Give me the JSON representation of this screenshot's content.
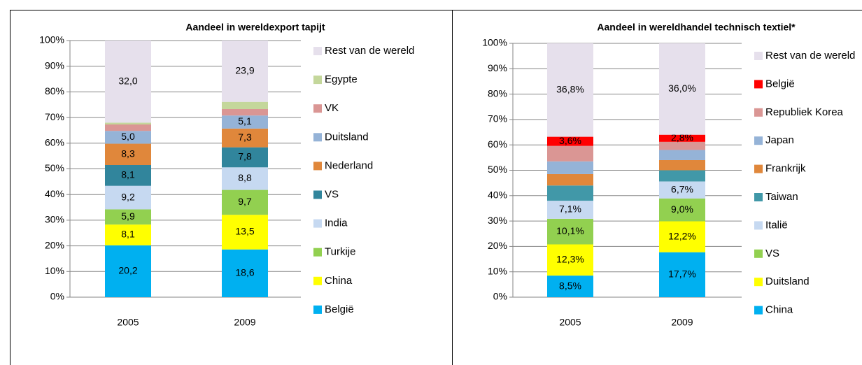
{
  "chart_data": [
    {
      "type": "stacked_bar",
      "title": "Aandeel in wereldexport tapijt",
      "categories": [
        "2005",
        "2009"
      ],
      "ylim": [
        0,
        100
      ],
      "yticks": [
        {
          "value": 0,
          "label": "0%"
        },
        {
          "value": 10,
          "label": "10%"
        },
        {
          "value": 20,
          "label": "20%"
        },
        {
          "value": 30,
          "label": "30%"
        },
        {
          "value": 40,
          "label": "40%"
        },
        {
          "value": 50,
          "label": "50%"
        },
        {
          "value": 60,
          "label": "60%"
        },
        {
          "value": 70,
          "label": "70%"
        },
        {
          "value": 80,
          "label": "80%"
        },
        {
          "value": 90,
          "label": "90%"
        },
        {
          "value": 100,
          "label": "100%"
        }
      ],
      "grid": true,
      "series": [
        {
          "name": "België",
          "color": "#00b0f0",
          "values": [
            20.2,
            18.6
          ],
          "value_labels": [
            "20,2",
            "18,6"
          ]
        },
        {
          "name": "China",
          "color": "#ffff00",
          "values": [
            8.1,
            13.5
          ],
          "value_labels": [
            "8,1",
            "13,5"
          ]
        },
        {
          "name": "Turkije",
          "color": "#92d050",
          "values": [
            5.9,
            9.7
          ],
          "value_labels": [
            "5,9",
            "9,7"
          ]
        },
        {
          "name": "India",
          "color": "#c6d9f1",
          "values": [
            9.2,
            8.8
          ],
          "value_labels": [
            "9,2",
            "8,8"
          ]
        },
        {
          "name": "VS",
          "color": "#31859c",
          "values": [
            8.1,
            7.8
          ],
          "value_labels": [
            "8,1",
            "7,8"
          ]
        },
        {
          "name": "Nederland",
          "color": "#e0873b",
          "values": [
            8.3,
            7.3
          ],
          "value_labels": [
            "8,3",
            "7,3"
          ]
        },
        {
          "name": "Duitsland",
          "color": "#95b3d7",
          "values": [
            5.0,
            5.1
          ],
          "value_labels": [
            "5,0",
            "5,1"
          ]
        },
        {
          "name": "VK",
          "color": "#da9694",
          "values": [
            2.5,
            2.5
          ]
        },
        {
          "name": "Egypte",
          "color": "#c4d79b",
          "values": [
            0.7,
            2.8
          ]
        },
        {
          "name": "Rest van de wereld",
          "color": "#e6e0ec",
          "values": [
            32.0,
            23.9
          ],
          "value_labels": [
            "32,0",
            "23,9"
          ]
        }
      ]
    },
    {
      "type": "stacked_bar",
      "title": "Aandeel in wereldhandel technisch textiel*",
      "categories": [
        "2005",
        "2009"
      ],
      "ylim": [
        0,
        100
      ],
      "yticks": [
        {
          "value": 0,
          "label": "0%"
        },
        {
          "value": 10,
          "label": "10%"
        },
        {
          "value": 20,
          "label": "20%"
        },
        {
          "value": 30,
          "label": "30%"
        },
        {
          "value": 40,
          "label": "40%"
        },
        {
          "value": 50,
          "label": "50%"
        },
        {
          "value": 60,
          "label": "60%"
        },
        {
          "value": 70,
          "label": "70%"
        },
        {
          "value": 80,
          "label": "80%"
        },
        {
          "value": 90,
          "label": "90%"
        },
        {
          "value": 100,
          "label": "100%"
        }
      ],
      "grid": true,
      "series": [
        {
          "name": "China",
          "color": "#00b0f0",
          "values": [
            8.5,
            17.7
          ],
          "value_labels": [
            "8,5%",
            "17,7%"
          ]
        },
        {
          "name": "Duitsland",
          "color": "#ffff00",
          "values": [
            12.3,
            12.2
          ],
          "value_labels": [
            "12,3%",
            "12,2%"
          ]
        },
        {
          "name": "VS",
          "color": "#92d050",
          "values": [
            10.1,
            9.0
          ],
          "value_labels": [
            "10,1%",
            "9,0%"
          ]
        },
        {
          "name": "Italië",
          "color": "#c6d9f1",
          "values": [
            7.1,
            6.7
          ],
          "value_labels": [
            "7,1%",
            "6,7%"
          ]
        },
        {
          "name": "Taiwan",
          "color": "#4198a8",
          "values": [
            6.0,
            4.4
          ]
        },
        {
          "name": "Frankrijk",
          "color": "#e0873b",
          "values": [
            4.5,
            4.0
          ]
        },
        {
          "name": "Japan",
          "color": "#95b3d7",
          "values": [
            5.0,
            4.0
          ]
        },
        {
          "name": "Republiek Korea",
          "color": "#da9694",
          "values": [
            6.1,
            3.2
          ]
        },
        {
          "name": "België",
          "color": "#ff0000",
          "values": [
            3.6,
            2.8
          ],
          "value_labels": [
            "3,6%",
            "2,8%"
          ]
        },
        {
          "name": "Rest van de wereld",
          "color": "#e6e0ec",
          "values": [
            36.8,
            36.0
          ],
          "value_labels": [
            "36,8%",
            "36,0%"
          ]
        }
      ]
    }
  ]
}
